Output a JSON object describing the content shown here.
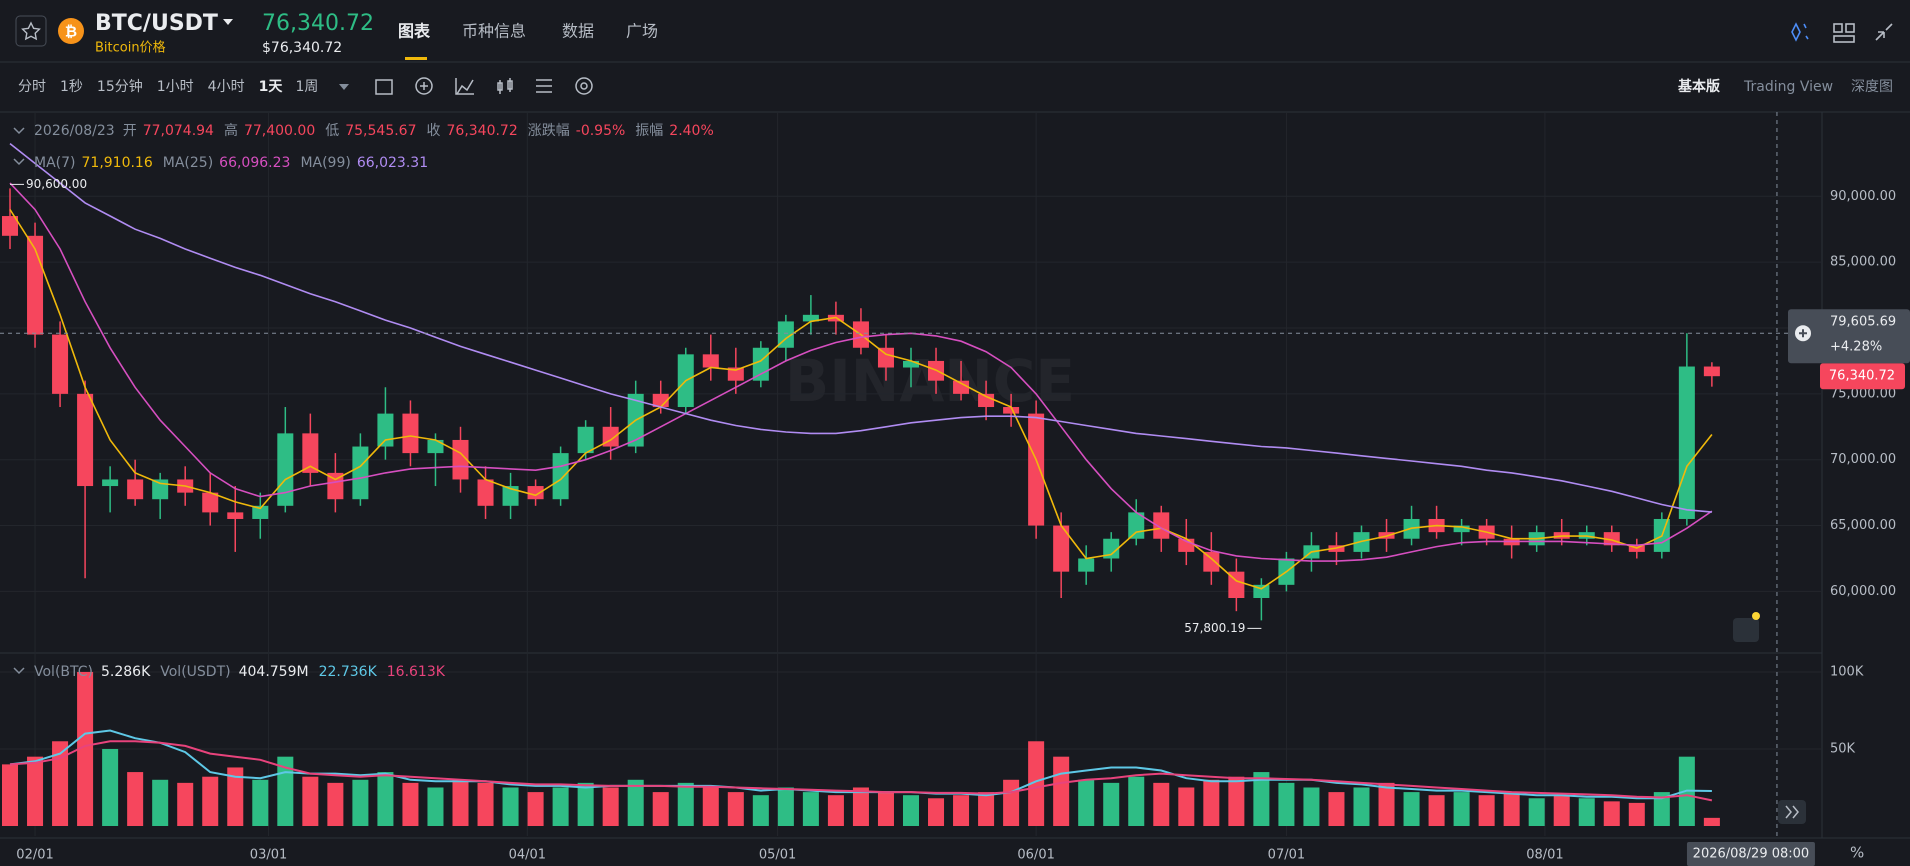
{
  "header": {
    "symbol": "BTC/USDT",
    "subtitle": "Bitcoin价格",
    "price": "76,340.72",
    "price_usd": "$76,340.72",
    "tabs": [
      "图表",
      "币种信息",
      "数据",
      "广场"
    ]
  },
  "toolbar": {
    "intervals": [
      "分时",
      "1秒",
      "15分钟",
      "1小时",
      "4小时",
      "1天",
      "1周"
    ],
    "views": [
      "基本版",
      "Trading View",
      "深度图"
    ]
  },
  "chart_data": {
    "type": "candlestick",
    "watermark": "BINANCE",
    "ohlc_legend": {
      "date": "2026/08/23",
      "open_label": "开",
      "open": "77,074.94",
      "high_label": "高",
      "high": "77,400.00",
      "low_label": "低",
      "low": "75,545.67",
      "close_label": "收",
      "close": "76,340.72",
      "change_label": "涨跌幅",
      "change": "-0.95%",
      "amplitude_label": "振幅",
      "amplitude": "2.40%"
    },
    "up_color": "#2ebd85",
    "down_color": "#f6465d",
    "xlim": [
      -0.4,
      72.4
    ],
    "xticks": [
      {
        "value": 1,
        "label": "02/01"
      },
      {
        "value": 10.33,
        "label": "03/01"
      },
      {
        "value": 20.67,
        "label": "04/01"
      },
      {
        "value": 30.67,
        "label": "05/01"
      },
      {
        "value": 41,
        "label": "06/01"
      },
      {
        "value": 51,
        "label": "07/01"
      },
      {
        "value": 61.33,
        "label": "08/01"
      }
    ],
    "ylim": [
      55400,
      96400
    ],
    "yticks": [
      {
        "value": 60000,
        "label": "60,000.00"
      },
      {
        "value": 65000,
        "label": "65,000.00"
      },
      {
        "value": 70000,
        "label": "70,000.00"
      },
      {
        "value": 75000,
        "label": "75,000.00"
      },
      {
        "value": 80000,
        "label": "80,000.00"
      },
      {
        "value": 85000,
        "label": "85,000.00"
      },
      {
        "value": 90000,
        "label": "90,000.00"
      }
    ],
    "grid": true,
    "open": [
      88500,
      87000,
      79500,
      75000,
      68000,
      68500,
      67000,
      68500,
      67500,
      66000,
      65500,
      66500,
      72000,
      69000,
      67000,
      71000,
      73500,
      70500,
      71500,
      68500,
      66500,
      68000,
      67000,
      70500,
      72500,
      71000,
      75000,
      74000,
      78000,
      77000,
      76000,
      78500,
      80500,
      81000,
      80500,
      78500,
      77000,
      77500,
      76000,
      75000,
      74000,
      73500,
      65000,
      61500,
      62500,
      64000,
      66000,
      64000,
      63000,
      61500,
      59500,
      60500,
      62500,
      63500,
      63000,
      64500,
      64000,
      65500,
      64500,
      65000,
      64000,
      63500,
      64500,
      64000,
      64500,
      63500,
      63000,
      65500,
      77074.94
    ],
    "high": [
      90600,
      88000,
      80500,
      76000,
      69500,
      70000,
      69000,
      69500,
      69000,
      68000,
      67500,
      74000,
      73500,
      70500,
      72000,
      75500,
      74500,
      72000,
      72500,
      69500,
      69000,
      68500,
      71000,
      73000,
      74000,
      76000,
      76000,
      78500,
      79500,
      78500,
      79000,
      81000,
      82500,
      82000,
      81500,
      79500,
      78500,
      78500,
      77500,
      76000,
      75000,
      74500,
      66000,
      63500,
      64500,
      67000,
      66500,
      65500,
      64500,
      62500,
      61000,
      63000,
      64500,
      64500,
      65000,
      65500,
      66500,
      66500,
      65500,
      65500,
      65000,
      65000,
      65500,
      65000,
      65000,
      64000,
      66000,
      79605.69,
      77400
    ],
    "low": [
      86000,
      78500,
      74000,
      61000,
      66000,
      66500,
      65500,
      66500,
      65000,
      63000,
      64000,
      66000,
      68000,
      66000,
      66500,
      70000,
      69500,
      68000,
      67500,
      65500,
      65500,
      66500,
      66500,
      70000,
      70000,
      70500,
      73500,
      73500,
      76000,
      75000,
      75500,
      77500,
      79500,
      79500,
      78000,
      76000,
      75500,
      75000,
      74500,
      73000,
      72500,
      64000,
      59500,
      60500,
      61500,
      63500,
      63000,
      62000,
      60500,
      58500,
      57800.19,
      60000,
      61500,
      62000,
      62500,
      63000,
      63500,
      64000,
      63500,
      63500,
      62500,
      63000,
      63500,
      63500,
      63000,
      62500,
      62500,
      65000,
      75545.67
    ],
    "close": [
      87000,
      79500,
      75000,
      68000,
      68500,
      67000,
      68500,
      67500,
      66000,
      65500,
      66500,
      72000,
      69000,
      67000,
      71000,
      73500,
      70500,
      71500,
      68500,
      66500,
      68000,
      67000,
      70500,
      72500,
      71000,
      75000,
      74000,
      78000,
      77000,
      76000,
      78500,
      80500,
      81000,
      80500,
      78500,
      77000,
      77500,
      76000,
      75000,
      74000,
      73500,
      65000,
      61500,
      62500,
      64000,
      66000,
      64000,
      63000,
      61500,
      59500,
      60500,
      62500,
      63500,
      63000,
      64500,
      64000,
      65500,
      64500,
      65000,
      64000,
      63500,
      64500,
      64000,
      64500,
      63500,
      63000,
      65500,
      77074.94,
      76340.72
    ],
    "ma": [
      {
        "name": "MA(7)",
        "value_label": "71,910.16",
        "color": "#f0b90b",
        "values": [
          89000,
          86000,
          81000,
          75500,
          71500,
          69000,
          68200,
          68000,
          67500,
          66800,
          66300,
          68500,
          69500,
          68500,
          69500,
          71500,
          71800,
          71500,
          70500,
          68500,
          67800,
          67300,
          68500,
          70500,
          71500,
          73000,
          74000,
          76000,
          77000,
          76800,
          77500,
          79200,
          80500,
          80800,
          79500,
          78000,
          77500,
          76800,
          75800,
          74800,
          74000,
          70000,
          65000,
          62500,
          62800,
          64500,
          64800,
          64000,
          62500,
          60800,
          60200,
          61500,
          63000,
          63300,
          63800,
          64200,
          64800,
          65000,
          64900,
          64500,
          64000,
          64000,
          64200,
          64200,
          63900,
          63300,
          64200,
          69500,
          71910.16
        ]
      },
      {
        "name": "MA(25)",
        "value_label": "66,096.23",
        "color": "#d64fc0",
        "values": [
          91000,
          89000,
          86000,
          82000,
          78500,
          75500,
          73000,
          71000,
          69000,
          67800,
          67200,
          67500,
          68000,
          68300,
          68600,
          69000,
          69300,
          69400,
          69500,
          69400,
          69300,
          69200,
          69500,
          70000,
          70700,
          71500,
          72500,
          73500,
          74500,
          75500,
          76500,
          77500,
          78300,
          78900,
          79300,
          79500,
          79600,
          79400,
          79000,
          78200,
          77000,
          75000,
          72500,
          70000,
          67800,
          66000,
          64800,
          63800,
          63100,
          62700,
          62500,
          62400,
          62300,
          62300,
          62400,
          62600,
          63000,
          63400,
          63700,
          63800,
          63800,
          63800,
          63800,
          63700,
          63600,
          63500,
          63700,
          64800,
          66096.23
        ]
      },
      {
        "name": "MA(99)",
        "value_label": "66,023.31",
        "color": "#b08cf2",
        "values": [
          94000,
          92500,
          91000,
          89500,
          88500,
          87500,
          86800,
          86000,
          85300,
          84600,
          84000,
          83300,
          82600,
          82000,
          81300,
          80600,
          80000,
          79300,
          78600,
          78000,
          77400,
          76800,
          76200,
          75600,
          75000,
          74500,
          74000,
          73500,
          73000,
          72600,
          72300,
          72100,
          72000,
          72000,
          72200,
          72500,
          72800,
          73000,
          73200,
          73300,
          73300,
          73200,
          72900,
          72600,
          72300,
          72000,
          71800,
          71600,
          71400,
          71200,
          71000,
          70900,
          70700,
          70500,
          70300,
          70100,
          69900,
          69700,
          69500,
          69200,
          69000,
          68700,
          68400,
          68000,
          67600,
          67100,
          66600,
          66200,
          66023.31
        ]
      }
    ],
    "annotations": [
      {
        "index": 0,
        "value": 90600,
        "label": "90,600.00"
      },
      {
        "index": 50,
        "value": 57800.19,
        "label": "57,800.19"
      }
    ],
    "crosshair": {
      "index": 70.6,
      "value": 79605.69,
      "value_label": "79,605.69",
      "change": "+4.28%",
      "time": "2026/08/29 08:00"
    },
    "last_price": {
      "value": 76340.72,
      "label": "76,340.72"
    },
    "volume": {
      "legend": {
        "base_label": "Vol(BTC)",
        "base": "5.286K",
        "quote_label": "Vol(USDT)",
        "quote": "404.759M"
      },
      "ylim": [
        0,
        111000
      ],
      "yticks": [
        {
          "value": 50000,
          "label": "50K"
        },
        {
          "value": 100000,
          "label": "100K"
        }
      ],
      "values": [
        40000,
        45000,
        55000,
        100000,
        50000,
        35000,
        30000,
        28000,
        32000,
        38000,
        30000,
        45000,
        32000,
        28000,
        30000,
        35000,
        28000,
        25000,
        30000,
        28000,
        25000,
        22000,
        25000,
        28000,
        25000,
        30000,
        22000,
        28000,
        25000,
        22000,
        20000,
        25000,
        22000,
        20000,
        25000,
        22000,
        20000,
        18000,
        20000,
        22000,
        30000,
        55000,
        45000,
        30000,
        28000,
        32000,
        28000,
        25000,
        30000,
        32000,
        35000,
        28000,
        25000,
        22000,
        25000,
        28000,
        22000,
        20000,
        22000,
        20000,
        22000,
        18000,
        20000,
        18000,
        16000,
        15000,
        22000,
        45000,
        5286
      ],
      "ma": [
        {
          "value_label": "22.736K",
          "color": "#5ec8e6",
          "values": [
            40000,
            42000,
            47000,
            60000,
            62000,
            57000,
            54000,
            48000,
            35000,
            32000,
            31000,
            35000,
            34000,
            34000,
            33000,
            34000,
            30000,
            29000,
            29000,
            29000,
            27000,
            26000,
            26000,
            25000,
            26000,
            26000,
            26000,
            26000,
            26000,
            25000,
            23000,
            24000,
            23000,
            22000,
            22000,
            22000,
            22000,
            21000,
            21000,
            20000,
            22000,
            29000,
            34000,
            36000,
            38000,
            38000,
            36000,
            31000,
            29000,
            29000,
            30000,
            30000,
            30000,
            28000,
            27000,
            25000,
            24000,
            23000,
            23000,
            22000,
            21000,
            20000,
            20000,
            19000,
            19000,
            18000,
            18000,
            23000,
            22736
          ]
        },
        {
          "value_label": "16.613K",
          "color": "#e8437c",
          "values": [
            40000,
            41000,
            44000,
            52000,
            55000,
            55000,
            54000,
            52000,
            47000,
            45000,
            43000,
            38000,
            34000,
            33000,
            32000,
            33000,
            32000,
            31000,
            30000,
            29000,
            28000,
            27000,
            27000,
            26500,
            26000,
            26000,
            26000,
            25500,
            25500,
            25000,
            24500,
            24000,
            23500,
            23000,
            22500,
            22000,
            22000,
            21500,
            21500,
            21000,
            22000,
            25000,
            28000,
            30000,
            31000,
            33000,
            34000,
            33000,
            32000,
            31000,
            31000,
            30500,
            30000,
            29000,
            28000,
            27000,
            26000,
            25000,
            24000,
            23000,
            22000,
            21500,
            21000,
            20500,
            20000,
            19000,
            18500,
            20000,
            16613
          ]
        }
      ]
    },
    "percent_toggle": "%"
  }
}
